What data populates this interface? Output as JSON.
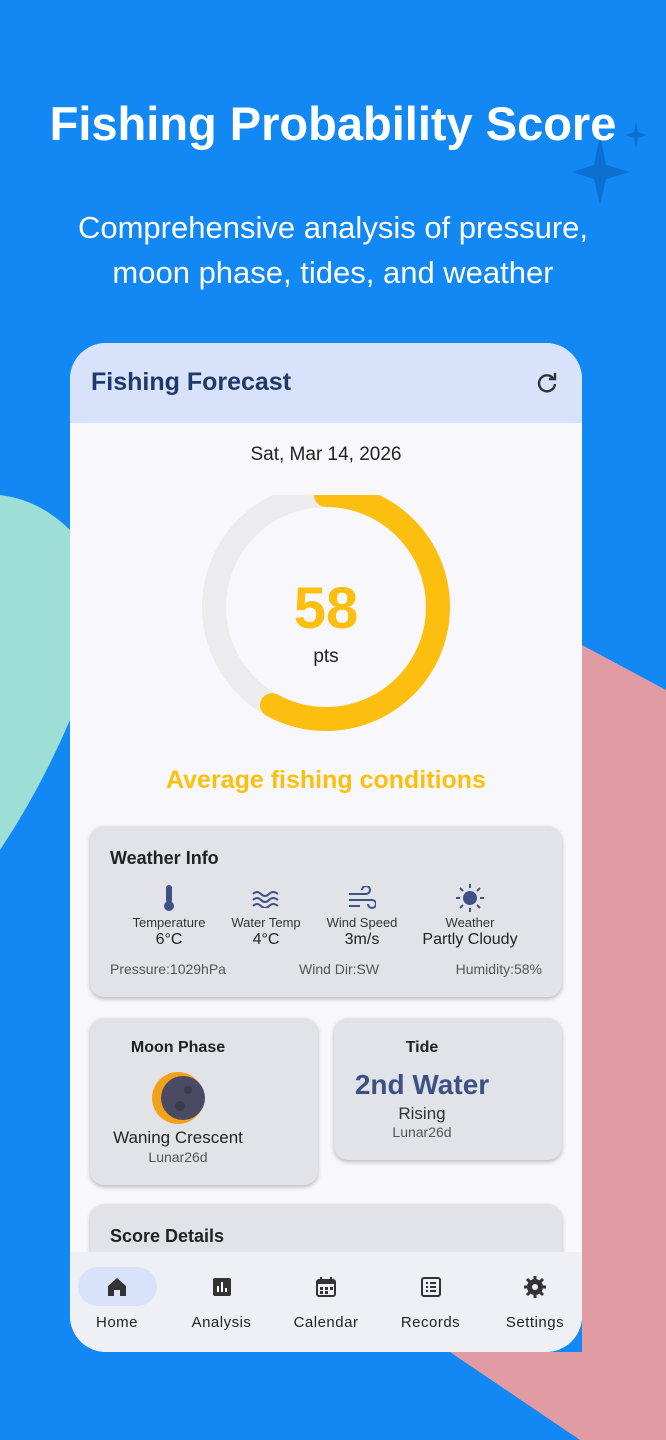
{
  "header": {
    "title": "Fishing Probability Score",
    "subtitle_lines": [
      "Comprehensive analysis of pressure,",
      "moon phase, tides, and weather"
    ]
  },
  "app": {
    "title": "Fishing Forecast",
    "date": "Sat, Mar 14, 2026",
    "score": "58",
    "score_unit": "pts",
    "condition": "Average fishing conditions",
    "weather": {
      "title": "Weather Info",
      "items": [
        {
          "label": "Temperature",
          "value": "6°C"
        },
        {
          "label": "Water Temp",
          "value": "4°C"
        },
        {
          "label": "Wind Speed",
          "value": "3m/s"
        },
        {
          "label": "Weather",
          "value": "Partly Cloudy"
        }
      ],
      "footer": [
        "Pressure:1029hPa",
        "Wind Dir:SW",
        "Humidity:58%"
      ]
    },
    "moon": {
      "title": "Moon Phase",
      "phase": "Waning Crescent",
      "lunar": "Lunar26d"
    },
    "tide": {
      "title": "Tide",
      "name": "2nd Water",
      "state": "Rising",
      "lunar": "Lunar26d"
    },
    "details_title": "Score Details",
    "nav": [
      "Home",
      "Analysis",
      "Calendar",
      "Records",
      "Settings"
    ]
  }
}
